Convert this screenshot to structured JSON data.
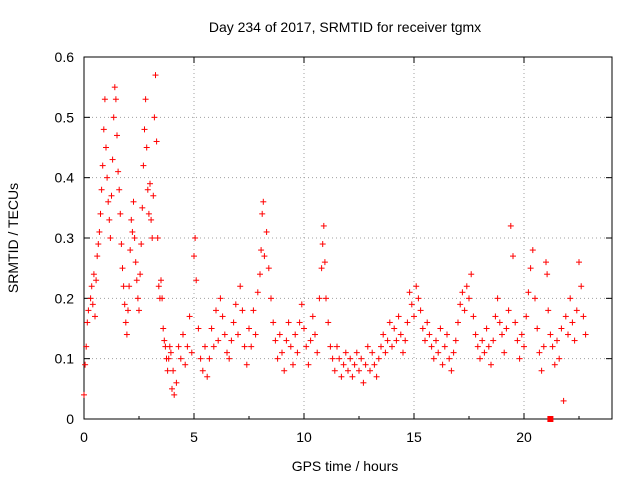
{
  "chart_data": {
    "type": "scatter",
    "title": "Day 234 of 2017, SRMTID for receiver tgmx",
    "xlabel": "GPS time / hours",
    "ylabel": "SRMTID / TECUs",
    "xlim": [
      0,
      24
    ],
    "ylim": [
      0,
      0.6
    ],
    "xticks": [
      0,
      5,
      10,
      15,
      20
    ],
    "xtick_labels": [
      "0",
      "5",
      "10",
      "15",
      "20"
    ],
    "yticks": [
      0,
      0.1,
      0.2,
      0.3,
      0.4,
      0.5,
      0.6
    ],
    "ytick_labels": [
      "0",
      "0.1",
      "0.2",
      "0.3",
      "0.4",
      "0.5",
      "0.6"
    ],
    "grid": true,
    "marker": "plus",
    "color": "#ff0000",
    "series": [
      {
        "name": "SRMTID",
        "points": [
          [
            0.0,
            0.04
          ],
          [
            0.05,
            0.09
          ],
          [
            0.1,
            0.12
          ],
          [
            0.15,
            0.16
          ],
          [
            0.2,
            0.18
          ],
          [
            0.3,
            0.2
          ],
          [
            0.35,
            0.22
          ],
          [
            0.4,
            0.19
          ],
          [
            0.45,
            0.24
          ],
          [
            0.5,
            0.17
          ],
          [
            0.55,
            0.23
          ],
          [
            0.6,
            0.27
          ],
          [
            0.65,
            0.29
          ],
          [
            0.7,
            0.31
          ],
          [
            0.75,
            0.34
          ],
          [
            0.8,
            0.38
          ],
          [
            0.85,
            0.42
          ],
          [
            0.9,
            0.48
          ],
          [
            0.95,
            0.53
          ],
          [
            1.0,
            0.45
          ],
          [
            1.05,
            0.4
          ],
          [
            1.1,
            0.36
          ],
          [
            1.15,
            0.33
          ],
          [
            1.2,
            0.3
          ],
          [
            1.25,
            0.37
          ],
          [
            1.3,
            0.43
          ],
          [
            1.35,
            0.5
          ],
          [
            1.4,
            0.55
          ],
          [
            1.45,
            0.53
          ],
          [
            1.5,
            0.47
          ],
          [
            1.55,
            0.41
          ],
          [
            1.6,
            0.38
          ],
          [
            1.65,
            0.34
          ],
          [
            1.7,
            0.29
          ],
          [
            1.75,
            0.25
          ],
          [
            1.8,
            0.22
          ],
          [
            1.85,
            0.19
          ],
          [
            1.9,
            0.16
          ],
          [
            1.95,
            0.14
          ],
          [
            2.0,
            0.18
          ],
          [
            2.05,
            0.22
          ],
          [
            2.1,
            0.28
          ],
          [
            2.15,
            0.33
          ],
          [
            2.2,
            0.31
          ],
          [
            2.25,
            0.36
          ],
          [
            2.3,
            0.3
          ],
          [
            2.35,
            0.26
          ],
          [
            2.4,
            0.23
          ],
          [
            2.45,
            0.2
          ],
          [
            2.5,
            0.18
          ],
          [
            2.55,
            0.24
          ],
          [
            2.6,
            0.29
          ],
          [
            2.65,
            0.35
          ],
          [
            2.7,
            0.42
          ],
          [
            2.75,
            0.48
          ],
          [
            2.8,
            0.53
          ],
          [
            2.85,
            0.45
          ],
          [
            2.9,
            0.38
          ],
          [
            2.95,
            0.34
          ],
          [
            3.0,
            0.39
          ],
          [
            3.05,
            0.33
          ],
          [
            3.1,
            0.3
          ],
          [
            3.15,
            0.37
          ],
          [
            3.2,
            0.5
          ],
          [
            3.25,
            0.57
          ],
          [
            3.3,
            0.46
          ],
          [
            3.35,
            0.3
          ],
          [
            3.4,
            0.22
          ],
          [
            3.45,
            0.2
          ],
          [
            3.5,
            0.23
          ],
          [
            3.55,
            0.2
          ],
          [
            3.6,
            0.15
          ],
          [
            3.65,
            0.13
          ],
          [
            3.7,
            0.12
          ],
          [
            3.75,
            0.1
          ],
          [
            3.8,
            0.08
          ],
          [
            3.85,
            0.1
          ],
          [
            3.9,
            0.12
          ],
          [
            3.95,
            0.11
          ],
          [
            4.0,
            0.05
          ],
          [
            4.05,
            0.08
          ],
          [
            4.1,
            0.04
          ],
          [
            4.2,
            0.06
          ],
          [
            4.3,
            0.12
          ],
          [
            4.4,
            0.1
          ],
          [
            4.5,
            0.14
          ],
          [
            4.6,
            0.09
          ],
          [
            4.7,
            0.12
          ],
          [
            4.8,
            0.17
          ],
          [
            4.9,
            0.11
          ],
          [
            5.0,
            0.27
          ],
          [
            5.05,
            0.3
          ],
          [
            5.1,
            0.23
          ],
          [
            5.2,
            0.15
          ],
          [
            5.3,
            0.1
          ],
          [
            5.4,
            0.08
          ],
          [
            5.5,
            0.12
          ],
          [
            5.6,
            0.07
          ],
          [
            5.7,
            0.1
          ],
          [
            5.8,
            0.15
          ],
          [
            5.9,
            0.12
          ],
          [
            6.0,
            0.18
          ],
          [
            6.1,
            0.13
          ],
          [
            6.2,
            0.2
          ],
          [
            6.3,
            0.17
          ],
          [
            6.4,
            0.14
          ],
          [
            6.5,
            0.11
          ],
          [
            6.6,
            0.1
          ],
          [
            6.7,
            0.13
          ],
          [
            6.8,
            0.16
          ],
          [
            6.9,
            0.19
          ],
          [
            7.0,
            0.14
          ],
          [
            7.1,
            0.22
          ],
          [
            7.2,
            0.18
          ],
          [
            7.3,
            0.12
          ],
          [
            7.4,
            0.09
          ],
          [
            7.5,
            0.15
          ],
          [
            7.6,
            0.12
          ],
          [
            7.7,
            0.18
          ],
          [
            7.8,
            0.14
          ],
          [
            7.9,
            0.21
          ],
          [
            8.0,
            0.24
          ],
          [
            8.05,
            0.28
          ],
          [
            8.1,
            0.34
          ],
          [
            8.15,
            0.36
          ],
          [
            8.2,
            0.27
          ],
          [
            8.3,
            0.31
          ],
          [
            8.4,
            0.25
          ],
          [
            8.5,
            0.2
          ],
          [
            8.6,
            0.16
          ],
          [
            8.7,
            0.13
          ],
          [
            8.8,
            0.1
          ],
          [
            8.9,
            0.14
          ],
          [
            9.0,
            0.11
          ],
          [
            9.1,
            0.08
          ],
          [
            9.2,
            0.13
          ],
          [
            9.3,
            0.16
          ],
          [
            9.4,
            0.12
          ],
          [
            9.5,
            0.09
          ],
          [
            9.6,
            0.14
          ],
          [
            9.7,
            0.11
          ],
          [
            9.8,
            0.16
          ],
          [
            9.9,
            0.19
          ],
          [
            10.0,
            0.15
          ],
          [
            10.1,
            0.12
          ],
          [
            10.2,
            0.09
          ],
          [
            10.3,
            0.13
          ],
          [
            10.4,
            0.17
          ],
          [
            10.5,
            0.14
          ],
          [
            10.6,
            0.11
          ],
          [
            10.7,
            0.2
          ],
          [
            10.8,
            0.25
          ],
          [
            10.85,
            0.29
          ],
          [
            10.9,
            0.32
          ],
          [
            10.95,
            0.26
          ],
          [
            11.0,
            0.2
          ],
          [
            11.1,
            0.16
          ],
          [
            11.2,
            0.12
          ],
          [
            11.3,
            0.1
          ],
          [
            11.4,
            0.08
          ],
          [
            11.5,
            0.12
          ],
          [
            11.6,
            0.1
          ],
          [
            11.7,
            0.07
          ],
          [
            11.8,
            0.09
          ],
          [
            11.9,
            0.11
          ],
          [
            12.0,
            0.08
          ],
          [
            12.1,
            0.1
          ],
          [
            12.2,
            0.07
          ],
          [
            12.3,
            0.09
          ],
          [
            12.4,
            0.11
          ],
          [
            12.5,
            0.08
          ],
          [
            12.6,
            0.1
          ],
          [
            12.7,
            0.06
          ],
          [
            12.8,
            0.09
          ],
          [
            12.9,
            0.12
          ],
          [
            13.0,
            0.08
          ],
          [
            13.1,
            0.11
          ],
          [
            13.2,
            0.09
          ],
          [
            13.3,
            0.07
          ],
          [
            13.4,
            0.1
          ],
          [
            13.5,
            0.12
          ],
          [
            13.6,
            0.14
          ],
          [
            13.7,
            0.11
          ],
          [
            13.8,
            0.13
          ],
          [
            13.9,
            0.16
          ],
          [
            14.0,
            0.12
          ],
          [
            14.1,
            0.15
          ],
          [
            14.2,
            0.13
          ],
          [
            14.3,
            0.17
          ],
          [
            14.4,
            0.14
          ],
          [
            14.5,
            0.11
          ],
          [
            14.6,
            0.13
          ],
          [
            14.7,
            0.16
          ],
          [
            14.8,
            0.21
          ],
          [
            14.9,
            0.19
          ],
          [
            15.0,
            0.17
          ],
          [
            15.1,
            0.22
          ],
          [
            15.2,
            0.2
          ],
          [
            15.3,
            0.18
          ],
          [
            15.4,
            0.15
          ],
          [
            15.5,
            0.13
          ],
          [
            15.6,
            0.16
          ],
          [
            15.7,
            0.14
          ],
          [
            15.8,
            0.12
          ],
          [
            15.9,
            0.1
          ],
          [
            16.0,
            0.13
          ],
          [
            16.1,
            0.11
          ],
          [
            16.2,
            0.15
          ],
          [
            16.3,
            0.09
          ],
          [
            16.4,
            0.12
          ],
          [
            16.5,
            0.14
          ],
          [
            16.6,
            0.1
          ],
          [
            16.7,
            0.08
          ],
          [
            16.8,
            0.11
          ],
          [
            16.9,
            0.13
          ],
          [
            17.0,
            0.16
          ],
          [
            17.1,
            0.19
          ],
          [
            17.2,
            0.21
          ],
          [
            17.3,
            0.18
          ],
          [
            17.4,
            0.22
          ],
          [
            17.5,
            0.2
          ],
          [
            17.6,
            0.24
          ],
          [
            17.7,
            0.17
          ],
          [
            17.8,
            0.14
          ],
          [
            17.9,
            0.12
          ],
          [
            18.0,
            0.1
          ],
          [
            18.1,
            0.13
          ],
          [
            18.2,
            0.11
          ],
          [
            18.3,
            0.15
          ],
          [
            18.4,
            0.12
          ],
          [
            18.5,
            0.09
          ],
          [
            18.6,
            0.13
          ],
          [
            18.7,
            0.17
          ],
          [
            18.8,
            0.2
          ],
          [
            18.9,
            0.16
          ],
          [
            19.0,
            0.14
          ],
          [
            19.1,
            0.11
          ],
          [
            19.2,
            0.15
          ],
          [
            19.3,
            0.18
          ],
          [
            19.4,
            0.32
          ],
          [
            19.5,
            0.27
          ],
          [
            19.6,
            0.16
          ],
          [
            19.7,
            0.13
          ],
          [
            19.8,
            0.1
          ],
          [
            19.9,
            0.14
          ],
          [
            20.0,
            0.12
          ],
          [
            20.1,
            0.17
          ],
          [
            20.2,
            0.21
          ],
          [
            20.3,
            0.25
          ],
          [
            20.4,
            0.28
          ],
          [
            20.5,
            0.2
          ],
          [
            20.6,
            0.15
          ],
          [
            20.7,
            0.11
          ],
          [
            20.8,
            0.08
          ],
          [
            20.9,
            0.12
          ],
          [
            21.0,
            0.26
          ],
          [
            21.05,
            0.24
          ],
          [
            21.1,
            0.18
          ],
          [
            21.2,
            0.14
          ],
          [
            21.3,
            0.12
          ],
          [
            21.4,
            0.09
          ],
          [
            21.5,
            0.13
          ],
          [
            21.6,
            0.1
          ],
          [
            21.7,
            0.15
          ],
          [
            21.8,
            0.03
          ],
          [
            21.9,
            0.17
          ],
          [
            22.0,
            0.14
          ],
          [
            22.1,
            0.2
          ],
          [
            22.2,
            0.16
          ],
          [
            22.3,
            0.13
          ],
          [
            22.4,
            0.18
          ],
          [
            22.5,
            0.26
          ],
          [
            22.6,
            0.22
          ],
          [
            22.7,
            0.17
          ],
          [
            22.8,
            0.14
          ]
        ]
      },
      {
        "name": "marker-square",
        "points": [
          [
            21.2,
            0.0
          ]
        ]
      }
    ]
  }
}
